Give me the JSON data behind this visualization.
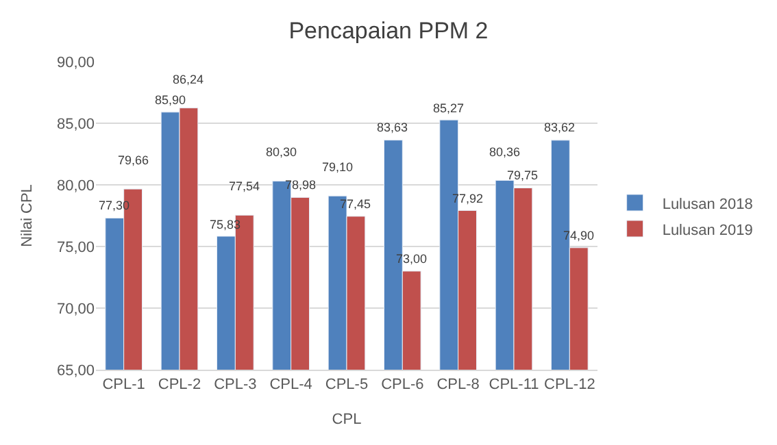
{
  "chart_data": {
    "type": "bar",
    "title": "Pencapaian PPM 2",
    "xlabel": "CPL",
    "ylabel": "Nilai CPL",
    "categories": [
      "CPL-1",
      "CPL-2",
      "CPL-3",
      "CPL-4",
      "CPL-5",
      "CPL-6",
      "CPL-8",
      "CPL-11",
      "CPL-12"
    ],
    "series": [
      {
        "name": "Lulusan 2018",
        "color": "#4f81bd",
        "values": [
          77.3,
          85.9,
          75.83,
          80.3,
          79.1,
          83.63,
          85.27,
          80.36,
          83.62
        ],
        "value_labels": [
          "77,30",
          "85,90",
          "75,83",
          "80,30",
          "79,10",
          "83,63",
          "85,27",
          "80,36",
          "83,62"
        ]
      },
      {
        "name": "Lulusan 2019",
        "color": "#c0504d",
        "values": [
          79.66,
          86.24,
          77.54,
          78.98,
          77.45,
          73.0,
          77.92,
          79.75,
          74.9
        ],
        "value_labels": [
          "79,66",
          "86,24",
          "77,54",
          "78,98",
          "77,45",
          "73,00",
          "77,92",
          "79,75",
          "74,90"
        ]
      }
    ],
    "ylim": [
      65,
      90
    ],
    "yticks": [
      {
        "value": 65,
        "label": "65,00"
      },
      {
        "value": 70,
        "label": "70,00"
      },
      {
        "value": 75,
        "label": "75,00"
      },
      {
        "value": 80,
        "label": "80,00"
      },
      {
        "value": 85,
        "label": "85,00"
      },
      {
        "value": 90,
        "label": "90,00"
      }
    ],
    "grid": "y",
    "legend": "right"
  }
}
